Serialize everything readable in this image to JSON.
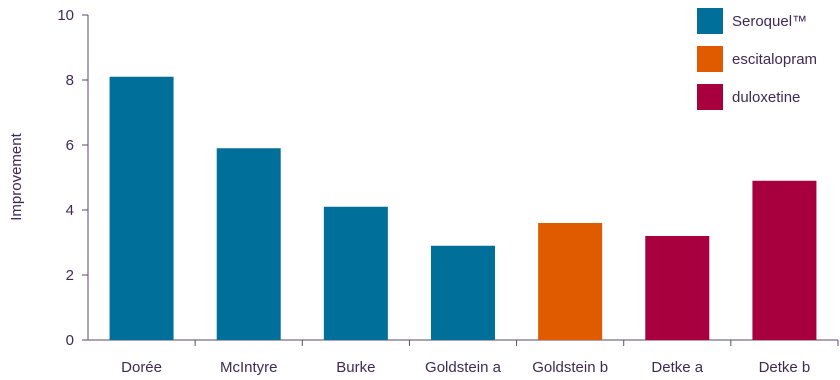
{
  "chart_data": {
    "type": "bar",
    "categories": [
      "Dorée",
      "McIntyre",
      "Burke",
      "Goldstein a",
      "Goldstein b",
      "Detke a",
      "Detke b"
    ],
    "values": [
      8.1,
      5.9,
      4.1,
      2.9,
      3.6,
      3.2,
      4.9
    ],
    "bar_series": [
      "Seroquel™",
      "Seroquel™",
      "Seroquel™",
      "Seroquel™",
      "escitalopram",
      "duloxetine",
      "duloxetine"
    ],
    "series": [
      {
        "name": "Seroquel™",
        "color": "#006f9a"
      },
      {
        "name": "escitalopram",
        "color": "#e05a00"
      },
      {
        "name": "duloxetine",
        "color": "#a8003f"
      }
    ],
    "ylabel": "Improvement",
    "xlabel": "",
    "ylim": [
      0,
      10
    ],
    "yticks": [
      0,
      2,
      4,
      6,
      8,
      10
    ],
    "grid": false,
    "legend_position": "top-right"
  }
}
